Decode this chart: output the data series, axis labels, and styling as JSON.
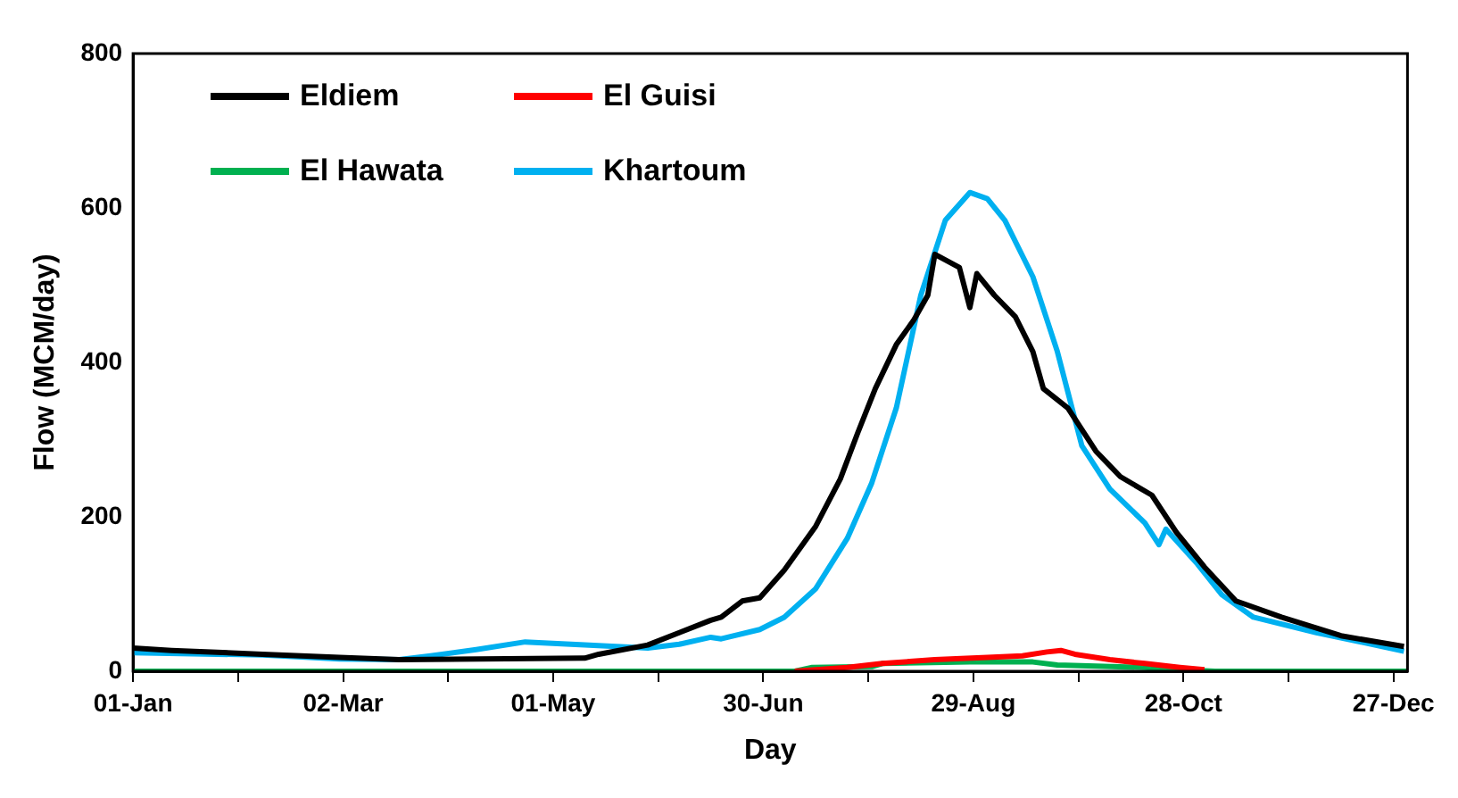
{
  "chart_data": {
    "type": "line",
    "xlabel": "Day",
    "ylabel": "Flow (MCM/day)",
    "xlim": [
      "--01-01",
      "--12-31"
    ],
    "ylim": [
      0,
      800
    ],
    "xticks": [
      {
        "value": "--01-01",
        "label": "01-Jan"
      },
      {
        "value": "--01-31",
        "label": null
      },
      {
        "value": "--03-02",
        "label": "02-Mar"
      },
      {
        "value": "--04-01",
        "label": null
      },
      {
        "value": "--05-01",
        "label": "01-May"
      },
      {
        "value": "--05-31",
        "label": null
      },
      {
        "value": "--06-30",
        "label": "30-Jun"
      },
      {
        "value": "--07-30",
        "label": null
      },
      {
        "value": "--08-29",
        "label": "29-Aug"
      },
      {
        "value": "--09-28",
        "label": null
      },
      {
        "value": "--10-28",
        "label": "28-Oct"
      },
      {
        "value": "--11-27",
        "label": null
      },
      {
        "value": "--12-27",
        "label": "27-Dec"
      }
    ],
    "yticks": [
      0,
      200,
      400,
      600,
      800
    ],
    "grid": false,
    "legend": "top left",
    "marker": "none",
    "line_style": "solid",
    "series": [
      {
        "name": "Eldiem",
        "color": "#000000",
        "x": [
          "--01-01",
          "--01-12",
          "--02-07",
          "--03-01",
          "--03-18",
          "--05-10",
          "--05-14",
          "--05-28",
          "--06-06",
          "--06-15",
          "--06-18",
          "--06-24",
          "--06-29",
          "--07-06",
          "--07-15",
          "--07-22",
          "--07-27",
          "--08-01",
          "--08-07",
          "--08-12",
          "--08-16",
          "--08-18",
          "--08-25",
          "--08-28",
          "--08-30",
          "--09-04",
          "--09-10",
          "--09-15",
          "--09-18",
          "--09-25",
          "--10-03",
          "--10-10",
          "--10-19",
          "--10-26",
          "--11-03",
          "--11-12",
          "--11-25",
          "--12-12",
          "--12-30"
        ],
        "values": [
          30,
          27,
          22,
          18,
          15,
          17,
          22,
          34,
          50,
          66,
          70,
          91,
          95,
          131,
          188,
          249,
          309,
          366,
          423,
          455,
          487,
          540,
          523,
          471,
          515,
          487,
          459,
          414,
          366,
          341,
          285,
          252,
          228,
          180,
          135,
          91,
          70,
          46,
          32
        ]
      },
      {
        "name": "El Guisi",
        "color": "#ff0000",
        "x": [
          "--07-09",
          "--07-24",
          "--08-03",
          "--08-18",
          "--09-02",
          "--09-12",
          "--09-19",
          "--09-23",
          "--09-27",
          "--10-07",
          "--10-17",
          "--10-27",
          "--11-03"
        ],
        "values": [
          0,
          5,
          10,
          15,
          18,
          20,
          25,
          27,
          22,
          15,
          10,
          5,
          2
        ]
      },
      {
        "name": "El Hawata",
        "color": "#00b050",
        "x": [
          "--01-01",
          "--07-09",
          "--07-14",
          "--07-31",
          "--08-03",
          "--08-28",
          "--09-15",
          "--09-22",
          "--10-17",
          "--10-27",
          "--11-06",
          "--12-31"
        ],
        "values": [
          0,
          0,
          5,
          6,
          10,
          12,
          12,
          8,
          5,
          2,
          0,
          0
        ]
      },
      {
        "name": "Khartoum",
        "color": "#00b0f0",
        "x": [
          "--01-01",
          "--02-07",
          "--03-01",
          "--03-18",
          "--03-27",
          "--04-09",
          "--04-23",
          "--05-10",
          "--05-28",
          "--06-06",
          "--06-15",
          "--06-18",
          "--06-29",
          "--07-06",
          "--07-15",
          "--07-24",
          "--07-31",
          "--08-07",
          "--08-14",
          "--08-21",
          "--08-28",
          "--09-02",
          "--09-07",
          "--09-15",
          "--09-22",
          "--09-29",
          "--10-07",
          "--10-17",
          "--10-21",
          "--10-23",
          "--11-01",
          "--11-08",
          "--11-17",
          "--12-05",
          "--12-30"
        ],
        "values": [
          24,
          21,
          16,
          15,
          20,
          28,
          38,
          34,
          30,
          35,
          44,
          42,
          54,
          70,
          107,
          172,
          244,
          341,
          487,
          584,
          620,
          612,
          584,
          511,
          414,
          292,
          236,
          192,
          164,
          184,
          139,
          99,
          70,
          50,
          26
        ]
      }
    ]
  }
}
